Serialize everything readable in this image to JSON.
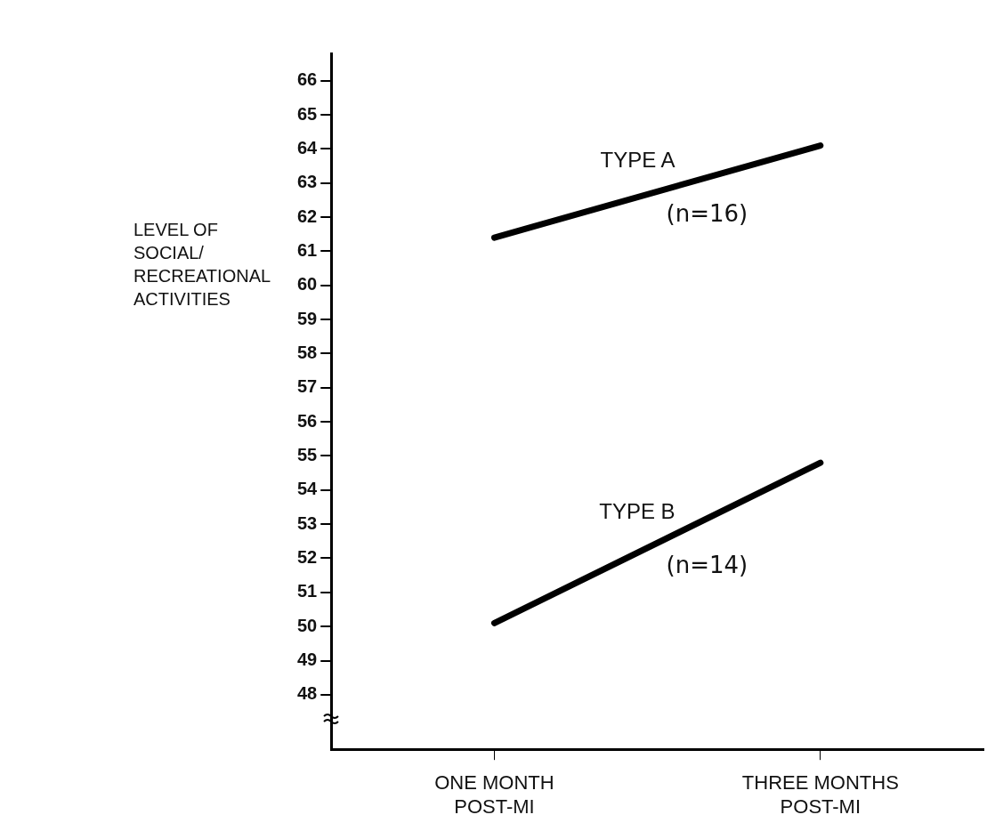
{
  "chart_data": {
    "type": "line",
    "ylabel": "LEVEL OF\nSOCIAL/\nRECREATIONAL\nACTIVITIES",
    "categories": [
      "ONE MONTH\nPOST-MI",
      "THREE MONTHS\nPOST-MI"
    ],
    "series": [
      {
        "name": "TYPE A",
        "color": "#000000",
        "values": [
          61.4,
          64.1
        ]
      },
      {
        "name": "TYPE B",
        "color": "#000000",
        "values": [
          50.1,
          54.8
        ]
      }
    ],
    "annotations": [
      "(n=16)",
      "(n=14)"
    ],
    "ylim": [
      46.4,
      66.8
    ],
    "yticks": [
      48,
      49,
      50,
      51,
      52,
      53,
      54,
      55,
      56,
      57,
      58,
      59,
      60,
      61,
      62,
      63,
      64,
      65,
      66
    ],
    "grid": false,
    "legend": false,
    "marker": "none",
    "line_style": "solid"
  }
}
